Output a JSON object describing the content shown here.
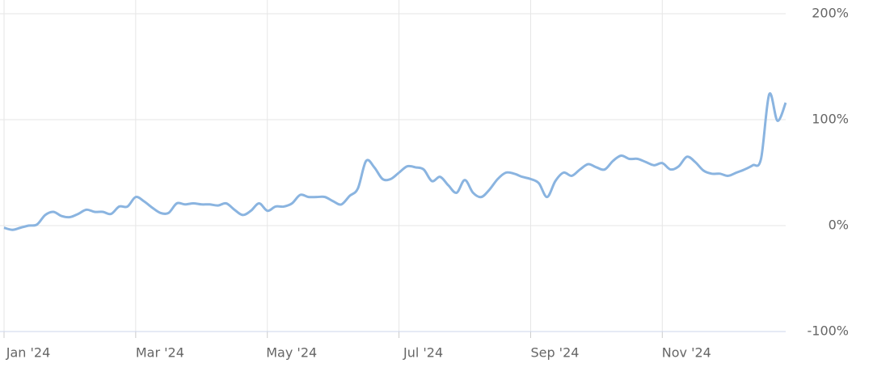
{
  "chart_data": {
    "type": "line",
    "categories": [
      "Jan '24",
      null,
      null,
      null,
      null,
      null,
      null,
      null,
      null,
      null,
      null,
      null,
      null,
      null,
      null,
      null,
      "Mar '24",
      null,
      null,
      null,
      null,
      null,
      null,
      null,
      null,
      null,
      null,
      null,
      null,
      null,
      null,
      null,
      "May '24",
      null,
      null,
      null,
      null,
      null,
      null,
      null,
      null,
      null,
      null,
      null,
      null,
      null,
      null,
      null,
      "Jul '24",
      null,
      null,
      null,
      null,
      null,
      null,
      null,
      null,
      null,
      null,
      null,
      null,
      null,
      null,
      null,
      "Sep '24",
      null,
      null,
      null,
      null,
      null,
      null,
      null,
      null,
      null,
      null,
      null,
      null,
      null,
      null,
      null,
      "Nov '24",
      null,
      null,
      null,
      null,
      null,
      null,
      null,
      null,
      null,
      null,
      null,
      null,
      null,
      null,
      null
    ],
    "series": [
      {
        "color": "#8ab4e0",
        "values": [
          -2,
          -4,
          -2,
          0,
          1,
          10,
          13,
          9,
          8,
          11,
          15,
          13,
          13,
          11,
          18,
          18,
          27,
          23,
          17,
          12,
          12,
          21,
          20,
          21,
          20,
          20,
          19,
          21,
          15,
          10,
          14,
          21,
          14,
          18,
          18,
          21,
          29,
          27,
          27,
          27,
          23,
          20,
          28,
          35,
          61,
          55,
          44,
          44,
          50,
          56,
          55,
          53,
          42,
          46,
          38,
          31,
          43,
          31,
          27,
          34,
          44,
          50,
          49,
          46,
          44,
          40,
          27,
          42,
          50,
          47,
          53,
          58,
          55,
          53,
          61,
          66,
          63,
          63,
          60,
          57,
          59,
          53,
          56,
          65,
          60,
          52,
          49,
          49,
          47,
          50,
          53,
          57,
          63,
          124,
          99,
          116
        ]
      }
    ],
    "ylim": [
      -100,
      200
    ],
    "yticks": [
      {
        "value": -100,
        "label": "-100%"
      },
      {
        "value": 0,
        "label": "0%"
      },
      {
        "value": 100,
        "label": "100%"
      },
      {
        "value": 200,
        "label": "200%"
      }
    ],
    "grid": true
  }
}
